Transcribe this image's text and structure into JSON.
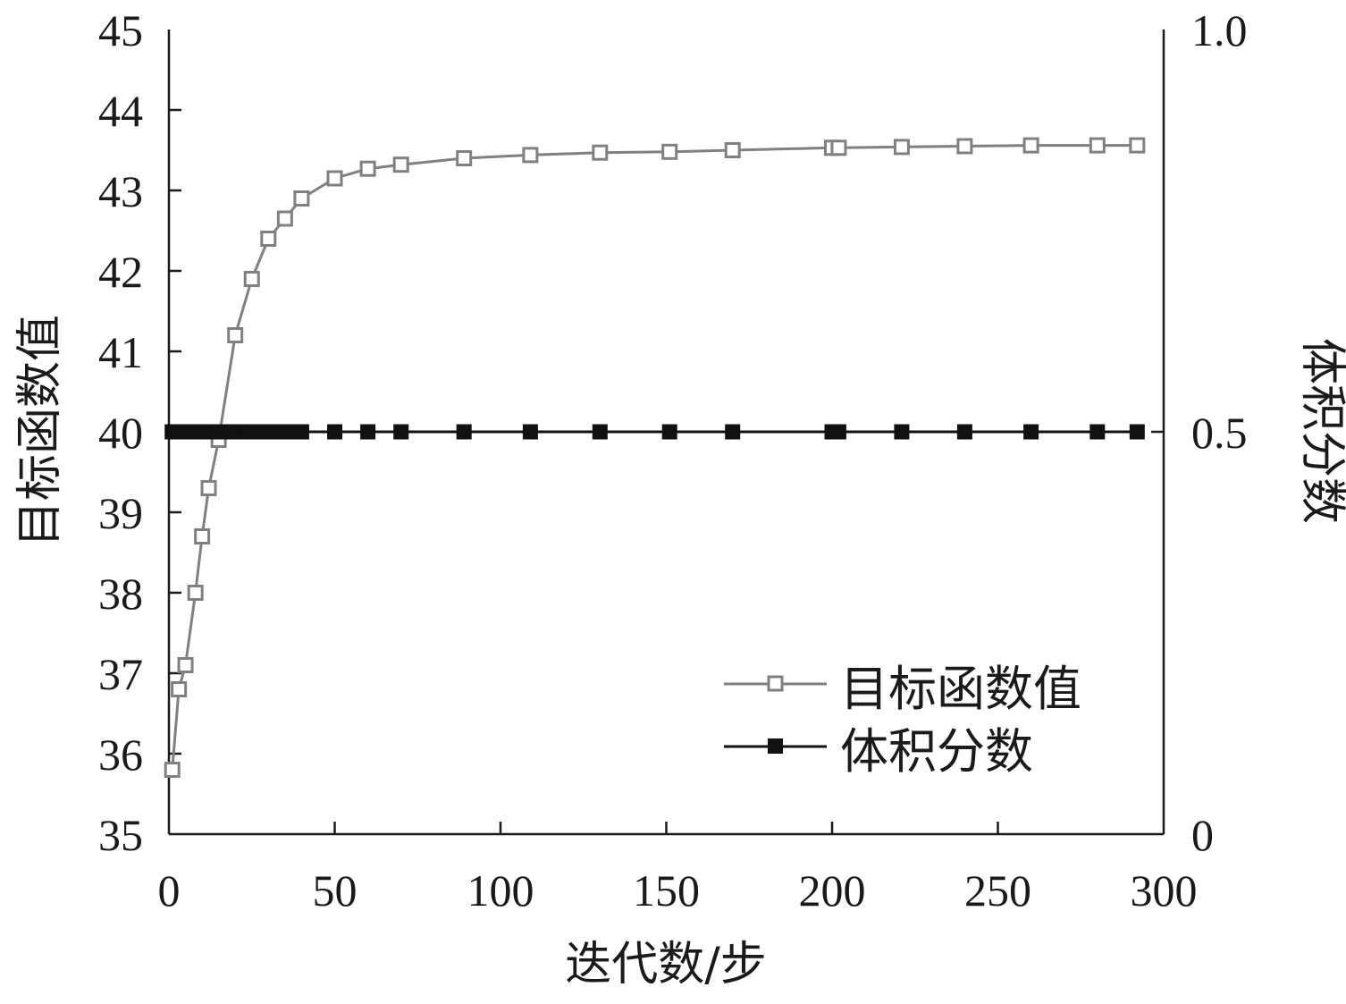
{
  "chart_data": {
    "type": "line",
    "xlabel": "迭代数/步",
    "ylabel_left": "目标函数值",
    "ylabel_right": "体积分数",
    "xlim": [
      0,
      300
    ],
    "ylim_left": [
      35,
      45
    ],
    "ylim_right": [
      0,
      1.0
    ],
    "x_ticks": [
      "0",
      "50",
      "100",
      "150",
      "200",
      "250",
      "300"
    ],
    "y_left_ticks": [
      "35",
      "36",
      "37",
      "38",
      "39",
      "40",
      "41",
      "42",
      "43",
      "44",
      "45"
    ],
    "y_right_ticks": [
      "0",
      "0.5",
      "1.0"
    ],
    "grid": false,
    "legend_position": "bottom-right",
    "series": [
      {
        "name": "目标函数值",
        "axis": "left",
        "color": "#808080",
        "marker": "open-square",
        "x": [
          1,
          3,
          5,
          8,
          10,
          12,
          15,
          20,
          25,
          30,
          35,
          40,
          50,
          60,
          70,
          89,
          109,
          130,
          151,
          170,
          200,
          202,
          221,
          240,
          260,
          280,
          292
        ],
        "y": [
          35.8,
          36.8,
          37.1,
          38.0,
          38.7,
          39.3,
          39.9,
          41.2,
          41.9,
          42.4,
          42.65,
          42.9,
          43.15,
          43.27,
          43.32,
          43.4,
          43.44,
          43.47,
          43.48,
          43.5,
          43.53,
          43.53,
          43.54,
          43.55,
          43.56,
          43.56,
          43.56
        ]
      },
      {
        "name": "体积分数",
        "axis": "right",
        "color": "#111111",
        "marker": "filled-square",
        "x": [
          1,
          2,
          3,
          4,
          5,
          6,
          7,
          8,
          9,
          10,
          11,
          12,
          13,
          14,
          15,
          16,
          17,
          18,
          19,
          20,
          21,
          22,
          23,
          24,
          25,
          26,
          27,
          28,
          29,
          30,
          31,
          32,
          33,
          34,
          35,
          36,
          37,
          38,
          39,
          40,
          50,
          60,
          70,
          89,
          109,
          130,
          151,
          170,
          200,
          202,
          221,
          240,
          260,
          280,
          292
        ],
        "y": [
          0.5,
          0.5,
          0.5,
          0.5,
          0.5,
          0.5,
          0.5,
          0.5,
          0.5,
          0.5,
          0.5,
          0.5,
          0.5,
          0.5,
          0.5,
          0.5,
          0.5,
          0.5,
          0.5,
          0.5,
          0.5,
          0.5,
          0.5,
          0.5,
          0.5,
          0.5,
          0.5,
          0.5,
          0.5,
          0.5,
          0.5,
          0.5,
          0.5,
          0.5,
          0.5,
          0.5,
          0.5,
          0.5,
          0.5,
          0.5,
          0.5,
          0.5,
          0.5,
          0.5,
          0.5,
          0.5,
          0.5,
          0.5,
          0.5,
          0.5,
          0.5,
          0.5,
          0.5,
          0.5,
          0.5
        ]
      }
    ]
  }
}
